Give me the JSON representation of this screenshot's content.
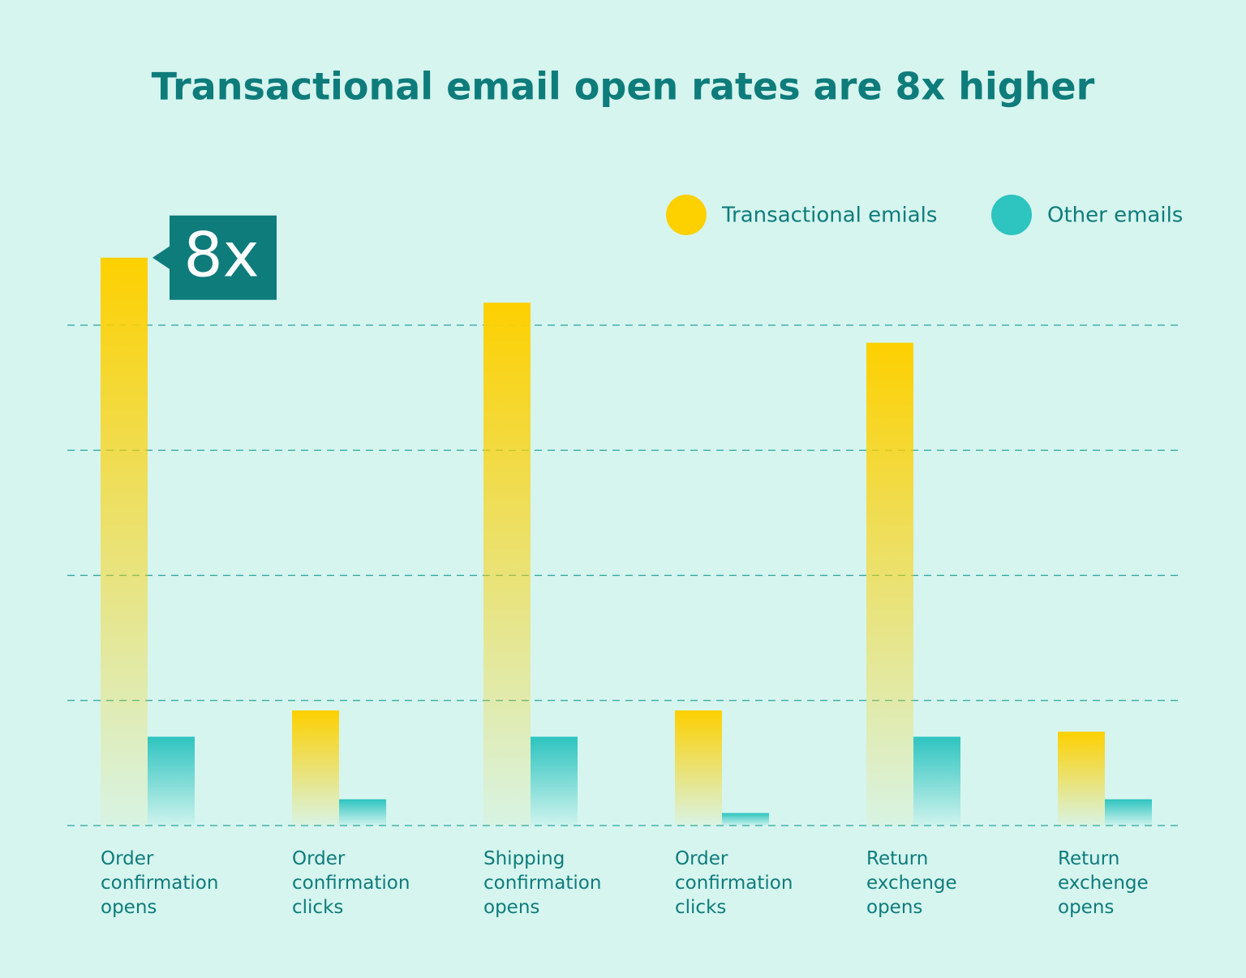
{
  "chart_data": {
    "type": "bar",
    "title": "Transactional email open rates are 8x higher",
    "annotation": "8x",
    "categories": [
      "Order confirmation opens",
      "Order confirmation clicks",
      "Shipping confirmation opens",
      "Order confirmation clicks",
      "Return exchenge opens",
      "Return exchenge opens"
    ],
    "series": [
      {
        "name": "Transactional emials",
        "color": "#fdd000",
        "values": [
          4.54,
          0.92,
          4.18,
          0.92,
          3.86,
          0.75
        ]
      },
      {
        "name": "Other emails",
        "color": "#2ec4c0",
        "values": [
          0.71,
          0.21,
          0.71,
          0.1,
          0.71,
          0.21
        ]
      }
    ],
    "ylim": [
      0,
      5
    ],
    "yticks": [
      0,
      1,
      2,
      3,
      4
    ],
    "grid": true
  }
}
